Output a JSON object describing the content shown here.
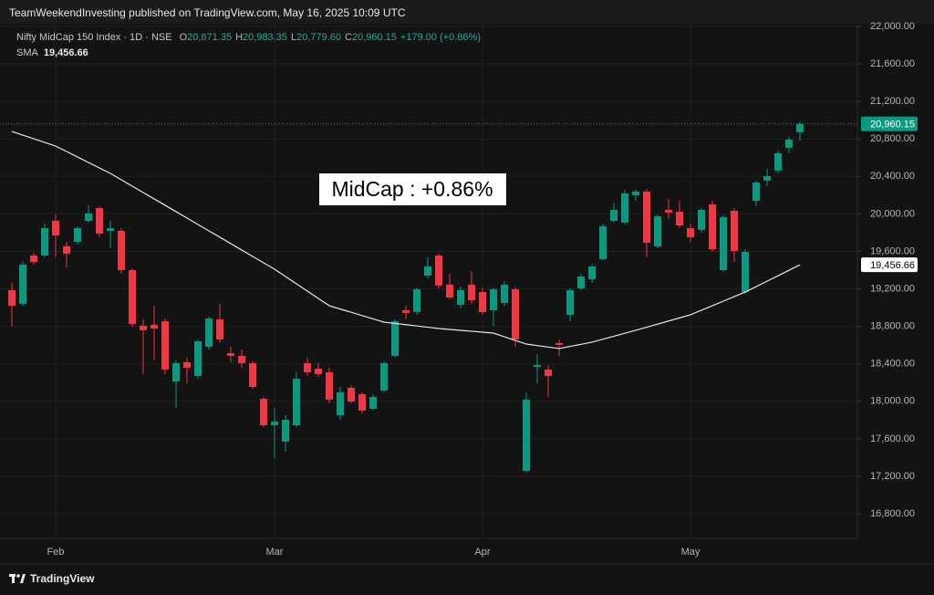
{
  "attribution": "TeamWeekendInvesting published on TradingView.com, May 16, 2025 10:09 UTC",
  "brand": "TradingView",
  "chart_data": {
    "type": "candlestick",
    "symbol": "Nifty MidCap 150 Index · 1D · NSE",
    "legend": [
      {
        "key": "O",
        "value": "20,871.35"
      },
      {
        "key": "H",
        "value": "20,983.35"
      },
      {
        "key": "L",
        "value": "20,779.60"
      },
      {
        "key": "C",
        "value": "20,960.15"
      }
    ],
    "change": "+179.00 (+0.86%)",
    "annotation": "MidCap : +0.86%",
    "up_color": "#089981",
    "down_color": "#f23645",
    "categories": [
      null,
      null,
      null,
      null,
      "Feb",
      null,
      null,
      null,
      null,
      null,
      null,
      null,
      null,
      null,
      null,
      null,
      null,
      null,
      null,
      null,
      null,
      null,
      null,
      null,
      "Mar",
      null,
      null,
      null,
      null,
      null,
      null,
      null,
      null,
      null,
      null,
      null,
      null,
      null,
      null,
      null,
      null,
      null,
      null,
      "Apr",
      null,
      null,
      null,
      null,
      null,
      null,
      null,
      null,
      null,
      null,
      null,
      null,
      null,
      null,
      null,
      null,
      null,
      null,
      "May",
      null,
      null,
      null,
      null,
      null,
      null,
      null,
      null,
      null,
      null
    ],
    "open": [
      19186,
      19040,
      19556,
      19556,
      19926,
      19654,
      19702,
      19926,
      20062,
      19819,
      19819,
      19400,
      18807,
      18817,
      18855,
      18212,
      18417,
      18271,
      18582,
      18874,
      18514,
      18485,
      18407,
      18027,
      17745,
      17570,
      17745,
      18407,
      18349,
      18310,
      17852,
      18144,
      18076,
      17920,
      18115,
      18485,
      18972,
      18953,
      19342,
      19556,
      19245,
      19030,
      19245,
      19166,
      18972,
      19050,
      19196,
      17258,
      18368,
      18339,
      18621,
      18923,
      19205,
      19303,
      19517,
      19926,
      19906,
      20199,
      20238,
      19653,
      20043,
      20023,
      19848,
      19829,
      20101,
      19400,
      20033,
      19166,
      20140,
      20355,
      20462,
      20705,
      20871.35
    ],
    "high": [
      19264,
      19498,
      19585,
      19897,
      19994,
      19702,
      19868,
      20092,
      20082,
      19926,
      19848,
      19420,
      18875,
      19020,
      18884,
      18436,
      18466,
      18660,
      18904,
      19040,
      18582,
      18553,
      18427,
      18047,
      17930,
      17852,
      18310,
      18466,
      18407,
      18358,
      18154,
      18173,
      18096,
      18076,
      18427,
      18875,
      19020,
      19215,
      19537,
      19575,
      19361,
      19225,
      19390,
      19215,
      19215,
      19283,
      19215,
      18096,
      18504,
      18388,
      18660,
      19205,
      19361,
      19459,
      19897,
      20121,
      20257,
      20257,
      20267,
      19994,
      20160,
      20140,
      19897,
      20062,
      20140,
      19984,
      20062,
      19624,
      20354,
      20481,
      20676,
      20822,
      20983.35
    ],
    "low": [
      18797,
      19020,
      19459,
      19537,
      19537,
      19429,
      19673,
      19906,
      19751,
      19634,
      19361,
      18797,
      18290,
      18436,
      18290,
      17930,
      18193,
      18242,
      18553,
      18631,
      18417,
      18358,
      18134,
      17725,
      17394,
      17463,
      17725,
      18271,
      18261,
      17979,
      17803,
      17979,
      17872,
      17901,
      18096,
      18466,
      18875,
      18923,
      19313,
      19205,
      19089,
      18991,
      19040,
      18923,
      18797,
      19020,
      18582,
      17239,
      18193,
      18047,
      18485,
      18855,
      19186,
      19264,
      19507,
      19906,
      19887,
      20140,
      19537,
      19634,
      19946,
      19848,
      19692,
      19800,
      19595,
      19381,
      19488,
      19147,
      20082,
      20296,
      20432,
      20647,
      20779.6
    ],
    "close": [
      19020,
      19459,
      19488,
      19848,
      19770,
      19576,
      19848,
      20004,
      19790,
      19848,
      19400,
      18826,
      18758,
      18777,
      18339,
      18407,
      18358,
      18641,
      18884,
      18660,
      18485,
      18407,
      18154,
      17745,
      17784,
      17803,
      18242,
      18310,
      18290,
      18018,
      18096,
      17998,
      17901,
      18047,
      18407,
      18855,
      18943,
      19196,
      19439,
      19235,
      19108,
      19186,
      19079,
      18952,
      19196,
      19245,
      18660,
      18018,
      18388,
      18271,
      18602,
      19186,
      19332,
      19439,
      19867,
      20043,
      20218,
      20238,
      19692,
      19975,
      20014,
      19877,
      19751,
      20043,
      19624,
      19965,
      19605,
      19595,
      20335,
      20403,
      20647,
      20793,
      20960.15
    ],
    "last_close_label": "20,960.15",
    "sma": {
      "name": "SMA",
      "color": "#e6e6e6",
      "last_label": "19,456.66",
      "values": [
        20880,
        20841,
        20802,
        20763,
        20724,
        20666,
        20607,
        20549,
        20490,
        20432,
        20364,
        20296,
        20228,
        20160,
        20092,
        20024,
        19956,
        19887,
        19819,
        19751,
        19683,
        19615,
        19546,
        19478,
        19410,
        19332,
        19254,
        19176,
        19098,
        19020,
        18985,
        18950,
        18915,
        18880,
        18845,
        18831,
        18818,
        18804,
        18791,
        18777,
        18767,
        18757,
        18748,
        18738,
        18728,
        18689,
        18650,
        18611,
        18595,
        18579,
        18563,
        18586,
        18608,
        18631,
        18663,
        18695,
        18726,
        18758,
        18791,
        18824,
        18857,
        18890,
        18923,
        18972,
        19020,
        19069,
        19117,
        19166,
        19224,
        19282,
        19340,
        19398,
        19456.66
      ]
    },
    "ylim": [
      16800,
      22000
    ],
    "yticks": [
      {
        "value": 16800,
        "label": "16,800.00"
      },
      {
        "value": 17200,
        "label": "17,200.00"
      },
      {
        "value": 17600,
        "label": "17,600.00"
      },
      {
        "value": 18000,
        "label": "18,000.00"
      },
      {
        "value": 18400,
        "label": "18,400.00"
      },
      {
        "value": 18800,
        "label": "18,800.00"
      },
      {
        "value": 19200,
        "label": "19,200.00"
      },
      {
        "value": 19600,
        "label": "19,600.00"
      },
      {
        "value": 20000,
        "label": "20,000.00"
      },
      {
        "value": 20400,
        "label": "20,400.00"
      },
      {
        "value": 20800,
        "label": "20,800.00"
      },
      {
        "value": 21200,
        "label": "21,200.00"
      },
      {
        "value": 21600,
        "label": "21,600.00"
      },
      {
        "value": 22000,
        "label": "22,000.00"
      }
    ],
    "grid": true
  }
}
